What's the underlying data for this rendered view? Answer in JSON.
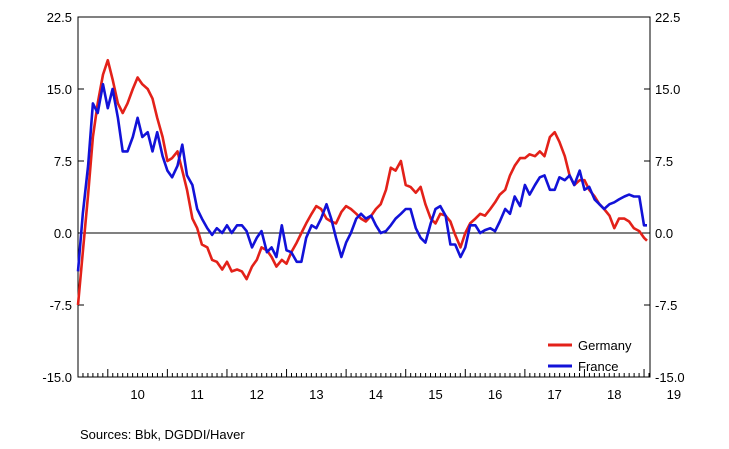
{
  "chart_data": {
    "type": "line",
    "title": "",
    "xlabel": "",
    "ylabel": "",
    "xlim": [
      2009.5,
      2019.1
    ],
    "ylim": [
      -15.0,
      22.5
    ],
    "y_ticks": [
      "22.5",
      "15.0",
      "7.5",
      "0.0",
      "-7.5",
      "-15.0"
    ],
    "y_tick_values": [
      22.5,
      15.0,
      7.5,
      0.0,
      -7.5,
      -15.0
    ],
    "x_ticks": [
      "10",
      "11",
      "12",
      "13",
      "14",
      "15",
      "16",
      "17",
      "18",
      "19"
    ],
    "x_tick_values": [
      2010,
      2011,
      2012,
      2013,
      2014,
      2015,
      2016,
      2017,
      2018,
      2019
    ],
    "grid": false,
    "zero_line": true,
    "legend_position": "bottom-right",
    "series": [
      {
        "name": "Germany",
        "color": "#e32119",
        "points": [
          [
            2009.5,
            -7.5
          ],
          [
            2009.58,
            -2
          ],
          [
            2009.67,
            4
          ],
          [
            2009.75,
            10
          ],
          [
            2009.83,
            13.5
          ],
          [
            2009.92,
            16.5
          ],
          [
            2010.0,
            18.0
          ],
          [
            2010.08,
            16
          ],
          [
            2010.17,
            13.5
          ],
          [
            2010.25,
            12.5
          ],
          [
            2010.33,
            13.5
          ],
          [
            2010.42,
            15
          ],
          [
            2010.5,
            16.2
          ],
          [
            2010.58,
            15.5
          ],
          [
            2010.67,
            15
          ],
          [
            2010.75,
            14
          ],
          [
            2010.83,
            12
          ],
          [
            2010.92,
            10
          ],
          [
            2011.0,
            7.5
          ],
          [
            2011.08,
            7.8
          ],
          [
            2011.17,
            8.5
          ],
          [
            2011.25,
            6.5
          ],
          [
            2011.33,
            4.5
          ],
          [
            2011.42,
            1.5
          ],
          [
            2011.5,
            0.5
          ],
          [
            2011.58,
            -1.2
          ],
          [
            2011.67,
            -1.5
          ],
          [
            2011.75,
            -2.8
          ],
          [
            2011.83,
            -3
          ],
          [
            2011.92,
            -3.8
          ],
          [
            2012.0,
            -3
          ],
          [
            2012.08,
            -4
          ],
          [
            2012.17,
            -3.8
          ],
          [
            2012.25,
            -4
          ],
          [
            2012.33,
            -4.8
          ],
          [
            2012.42,
            -3.5
          ],
          [
            2012.5,
            -2.8
          ],
          [
            2012.58,
            -1.5
          ],
          [
            2012.67,
            -1.8
          ],
          [
            2012.75,
            -2.5
          ],
          [
            2012.83,
            -3.5
          ],
          [
            2012.92,
            -2.8
          ],
          [
            2013.0,
            -3.2
          ],
          [
            2013.08,
            -2
          ],
          [
            2013.17,
            -1
          ],
          [
            2013.25,
            0
          ],
          [
            2013.33,
            1
          ],
          [
            2013.42,
            2
          ],
          [
            2013.5,
            2.8
          ],
          [
            2013.58,
            2.5
          ],
          [
            2013.67,
            1.5
          ],
          [
            2013.75,
            1.2
          ],
          [
            2013.83,
            1
          ],
          [
            2013.92,
            2.2
          ],
          [
            2014.0,
            2.8
          ],
          [
            2014.08,
            2.5
          ],
          [
            2014.17,
            2
          ],
          [
            2014.25,
            1.5
          ],
          [
            2014.33,
            1.2
          ],
          [
            2014.42,
            1.8
          ],
          [
            2014.5,
            2.5
          ],
          [
            2014.58,
            3
          ],
          [
            2014.67,
            4.5
          ],
          [
            2014.75,
            6.8
          ],
          [
            2014.83,
            6.5
          ],
          [
            2014.92,
            7.5
          ],
          [
            2015.0,
            5
          ],
          [
            2015.08,
            4.8
          ],
          [
            2015.17,
            4.2
          ],
          [
            2015.25,
            4.8
          ],
          [
            2015.33,
            3
          ],
          [
            2015.42,
            1.5
          ],
          [
            2015.5,
            1
          ],
          [
            2015.58,
            2
          ],
          [
            2015.67,
            1.8
          ],
          [
            2015.75,
            1.2
          ],
          [
            2015.83,
            -0.2
          ],
          [
            2015.92,
            -1.5
          ],
          [
            2016.0,
            0
          ],
          [
            2016.08,
            1
          ],
          [
            2016.17,
            1.5
          ],
          [
            2016.25,
            2
          ],
          [
            2016.33,
            1.8
          ],
          [
            2016.42,
            2.5
          ],
          [
            2016.5,
            3.2
          ],
          [
            2016.58,
            4
          ],
          [
            2016.67,
            4.5
          ],
          [
            2016.75,
            6
          ],
          [
            2016.83,
            7
          ],
          [
            2016.92,
            7.8
          ],
          [
            2017.0,
            7.8
          ],
          [
            2017.08,
            8.2
          ],
          [
            2017.17,
            8
          ],
          [
            2017.25,
            8.5
          ],
          [
            2017.33,
            8
          ],
          [
            2017.42,
            10
          ],
          [
            2017.5,
            10.5
          ],
          [
            2017.58,
            9.5
          ],
          [
            2017.67,
            8
          ],
          [
            2017.75,
            6
          ],
          [
            2017.83,
            5
          ],
          [
            2017.92,
            5.5
          ],
          [
            2018.0,
            5.5
          ],
          [
            2018.08,
            4.5
          ],
          [
            2018.17,
            3.8
          ],
          [
            2018.25,
            3
          ],
          [
            2018.33,
            2.5
          ],
          [
            2018.42,
            1.8
          ],
          [
            2018.5,
            0.5
          ],
          [
            2018.58,
            1.5
          ],
          [
            2018.67,
            1.5
          ],
          [
            2018.75,
            1.2
          ],
          [
            2018.83,
            0.5
          ],
          [
            2018.92,
            0.2
          ],
          [
            2019.0,
            -0.5
          ],
          [
            2019.05,
            -0.8
          ]
        ]
      },
      {
        "name": "France",
        "color": "#1212d8",
        "points": [
          [
            2009.5,
            -4
          ],
          [
            2009.58,
            2
          ],
          [
            2009.67,
            7
          ],
          [
            2009.75,
            13.5
          ],
          [
            2009.83,
            12.5
          ],
          [
            2009.92,
            15.5
          ],
          [
            2010.0,
            13
          ],
          [
            2010.08,
            15
          ],
          [
            2010.17,
            12
          ],
          [
            2010.25,
            8.5
          ],
          [
            2010.33,
            8.5
          ],
          [
            2010.42,
            10
          ],
          [
            2010.5,
            12
          ],
          [
            2010.58,
            10
          ],
          [
            2010.67,
            10.5
          ],
          [
            2010.75,
            8.5
          ],
          [
            2010.83,
            10.5
          ],
          [
            2010.92,
            8
          ],
          [
            2011.0,
            6.5
          ],
          [
            2011.08,
            5.8
          ],
          [
            2011.17,
            7
          ],
          [
            2011.25,
            9.2
          ],
          [
            2011.33,
            6
          ],
          [
            2011.42,
            5
          ],
          [
            2011.5,
            2.5
          ],
          [
            2011.58,
            1.5
          ],
          [
            2011.67,
            0.5
          ],
          [
            2011.75,
            -0.2
          ],
          [
            2011.83,
            0.5
          ],
          [
            2011.92,
            0
          ],
          [
            2012.0,
            0.8
          ],
          [
            2012.08,
            0
          ],
          [
            2012.17,
            0.8
          ],
          [
            2012.25,
            0.8
          ],
          [
            2012.33,
            0.2
          ],
          [
            2012.42,
            -1.5
          ],
          [
            2012.5,
            -0.5
          ],
          [
            2012.58,
            0.2
          ],
          [
            2012.67,
            -2
          ],
          [
            2012.75,
            -1.5
          ],
          [
            2012.83,
            -2.5
          ],
          [
            2012.92,
            0.8
          ],
          [
            2013.0,
            -1.8
          ],
          [
            2013.08,
            -2
          ],
          [
            2013.17,
            -3
          ],
          [
            2013.25,
            -3
          ],
          [
            2013.33,
            -0.5
          ],
          [
            2013.42,
            0.8
          ],
          [
            2013.5,
            0.5
          ],
          [
            2013.58,
            1.5
          ],
          [
            2013.67,
            3
          ],
          [
            2013.75,
            1.5
          ],
          [
            2013.83,
            -0.5
          ],
          [
            2013.92,
            -2.5
          ],
          [
            2014.0,
            -1
          ],
          [
            2014.08,
            0
          ],
          [
            2014.17,
            1.5
          ],
          [
            2014.25,
            2
          ],
          [
            2014.33,
            1.5
          ],
          [
            2014.42,
            1.8
          ],
          [
            2014.5,
            0.8
          ],
          [
            2014.58,
            0
          ],
          [
            2014.67,
            0.2
          ],
          [
            2014.75,
            0.8
          ],
          [
            2014.83,
            1.5
          ],
          [
            2014.92,
            2
          ],
          [
            2015.0,
            2.5
          ],
          [
            2015.08,
            2.5
          ],
          [
            2015.17,
            0.5
          ],
          [
            2015.25,
            -0.5
          ],
          [
            2015.33,
            -1
          ],
          [
            2015.42,
            1
          ],
          [
            2015.5,
            2.5
          ],
          [
            2015.58,
            2.8
          ],
          [
            2015.67,
            1.8
          ],
          [
            2015.75,
            -1.2
          ],
          [
            2015.83,
            -1.2
          ],
          [
            2015.92,
            -2.5
          ],
          [
            2016.0,
            -1.5
          ],
          [
            2016.08,
            0.8
          ],
          [
            2016.17,
            0.8
          ],
          [
            2016.25,
            0
          ],
          [
            2016.33,
            0.3
          ],
          [
            2016.42,
            0.5
          ],
          [
            2016.5,
            0.2
          ],
          [
            2016.58,
            1.2
          ],
          [
            2016.67,
            2.5
          ],
          [
            2016.75,
            2
          ],
          [
            2016.83,
            3.8
          ],
          [
            2016.92,
            2.8
          ],
          [
            2017.0,
            5
          ],
          [
            2017.08,
            4
          ],
          [
            2017.17,
            5
          ],
          [
            2017.25,
            5.8
          ],
          [
            2017.33,
            6
          ],
          [
            2017.42,
            4.5
          ],
          [
            2017.5,
            4.5
          ],
          [
            2017.58,
            5.8
          ],
          [
            2017.67,
            5.5
          ],
          [
            2017.75,
            6
          ],
          [
            2017.83,
            5
          ],
          [
            2017.92,
            6.5
          ],
          [
            2018.0,
            4.5
          ],
          [
            2018.08,
            4.8
          ],
          [
            2018.17,
            3.5
          ],
          [
            2018.25,
            3
          ],
          [
            2018.33,
            2.5
          ],
          [
            2018.42,
            3
          ],
          [
            2018.5,
            3.2
          ],
          [
            2018.58,
            3.5
          ],
          [
            2018.67,
            3.8
          ],
          [
            2018.75,
            4
          ],
          [
            2018.83,
            3.8
          ],
          [
            2018.92,
            3.8
          ],
          [
            2019.0,
            0.8
          ],
          [
            2019.05,
            0.8
          ]
        ]
      }
    ]
  },
  "source_text": "Sources:  Bbk, DGDDI/Haver"
}
